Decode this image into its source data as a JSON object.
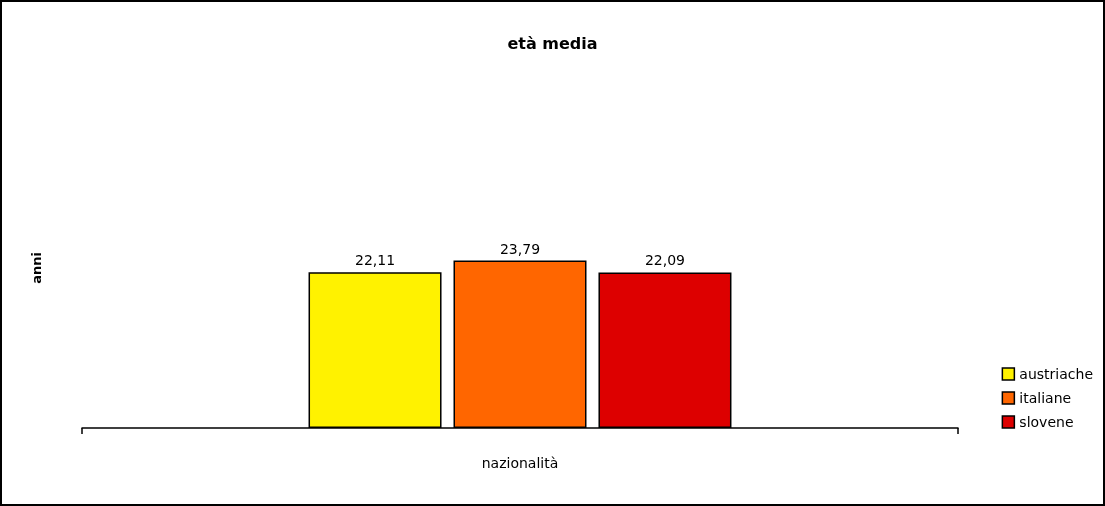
{
  "chart_data": {
    "type": "bar",
    "title": "età media",
    "xlabel": "nazionalità",
    "ylabel": "anni",
    "categories": [
      null
    ],
    "series": [
      {
        "name": "austriache",
        "color": "#fff200",
        "values": [
          22.11
        ],
        "value_labels": [
          "22,11"
        ]
      },
      {
        "name": "italiane",
        "color": "#ff6600",
        "values": [
          23.79
        ],
        "value_labels": [
          "23,79"
        ]
      },
      {
        "name": "slovene",
        "color": "#dd0000",
        "values": [
          22.09
        ],
        "value_labels": [
          "22,09"
        ]
      }
    ],
    "legend": "right",
    "grid": false
  }
}
